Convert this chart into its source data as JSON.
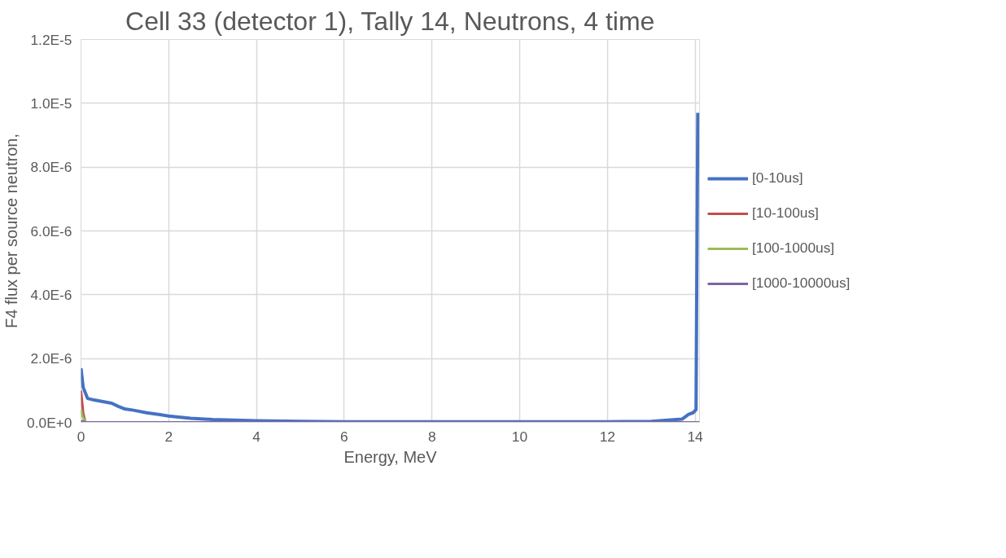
{
  "chart_data": {
    "type": "line",
    "title": "Cell 33 (detector 1), Tally 14, Neutrons, 4 time",
    "xlabel": "Energy, MeV",
    "ylabel": "F4 flux per source neutron,",
    "xlim": [
      0,
      14.1
    ],
    "xticks": [
      0,
      2,
      4,
      6,
      8,
      10,
      12,
      14
    ],
    "ylim": [
      0,
      1.2e-05
    ],
    "yticks": [
      {
        "value": 0,
        "label": "0.0E+0"
      },
      {
        "value": 2e-06,
        "label": "2.0E-6"
      },
      {
        "value": 4e-06,
        "label": "4.0E-6"
      },
      {
        "value": 6e-06,
        "label": "6.0E-6"
      },
      {
        "value": 8e-06,
        "label": "8.0E-6"
      },
      {
        "value": 1e-05,
        "label": "1.0E-5"
      },
      {
        "value": 1.2e-05,
        "label": "1.2E-5"
      }
    ],
    "grid": true,
    "legend": "right",
    "marker": "none",
    "line_style": "solid",
    "series": [
      {
        "name": "[0-10us]",
        "color": "#4472c4",
        "x": [
          0.0,
          0.05,
          0.15,
          0.3,
          0.5,
          0.7,
          0.85,
          1.0,
          1.2,
          1.5,
          1.8,
          2.0,
          2.5,
          3.0,
          3.5,
          4.0,
          5.0,
          6.0,
          8.0,
          10.0,
          12.0,
          13.0,
          13.5,
          13.7,
          13.85,
          13.95,
          14.02,
          14.06
        ],
        "values": [
          1.7e-06,
          1.1e-06,
          7.5e-07,
          7e-07,
          6.5e-07,
          6e-07,
          5e-07,
          4.2e-07,
          3.8e-07,
          3e-07,
          2.4e-07,
          2e-07,
          1.3e-07,
          9e-08,
          7e-08,
          5e-08,
          3e-08,
          2e-08,
          2e-08,
          2e-08,
          2e-08,
          3e-08,
          8e-08,
          1e-07,
          2.5e-07,
          3e-07,
          4e-07,
          9.7e-06
        ]
      },
      {
        "name": "[10-100us]",
        "color": "#c0504d",
        "x": [
          0.0,
          0.05,
          0.1
        ],
        "values": [
          1e-06,
          3e-07,
          0.0
        ]
      },
      {
        "name": "[100-1000us]",
        "color": "#9bbb59",
        "x": [
          0.0,
          0.03,
          0.1
        ],
        "values": [
          4e-07,
          2e-07,
          0.0
        ]
      },
      {
        "name": "[1000-10000us]",
        "color": "#8064a2",
        "x": [
          0.0,
          0.1,
          14.1
        ],
        "values": [
          5e-08,
          0.0,
          0.0
        ]
      }
    ]
  }
}
